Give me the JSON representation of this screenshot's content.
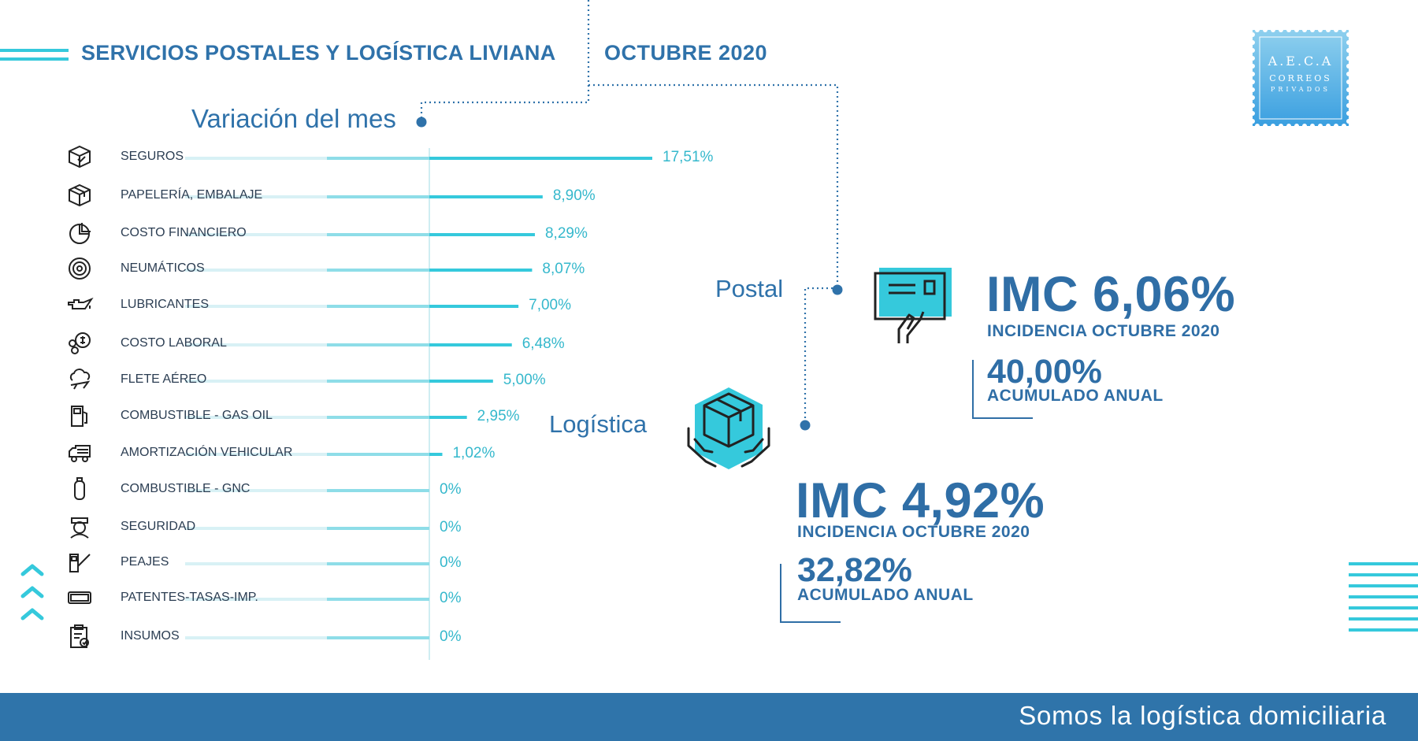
{
  "header": {
    "title": "SERVICIOS POSTALES Y LOGÍSTICA LIVIANA",
    "month": "OCTUBRE 2020"
  },
  "logo": {
    "line1": "A.E.C.A",
    "line2": "CORREOS",
    "line3": "PRIVADOS"
  },
  "sections": {
    "postal": "Postal",
    "logistica": "Logística"
  },
  "postal": {
    "imc": "IMC 6,06%",
    "incidencia": "INCIDENCIA OCTUBRE 2020",
    "acumulado_value": "40,00%",
    "acumulado_label": "ACUMULADO ANUAL"
  },
  "logistica": {
    "imc": "IMC 4,92%",
    "incidencia": "INCIDENCIA OCTUBRE 2020",
    "acumulado_value": "32,82%",
    "acumulado_label": "ACUMULADO ANUAL"
  },
  "footer": {
    "slogan": "Somos la logística domiciliaria"
  },
  "colors": {
    "bar": "#35c9dc",
    "bar_faint": "#d8f1f5",
    "primary": "#2f72aa",
    "footer": "#2f74aa"
  },
  "chart_data": {
    "type": "bar",
    "orientation": "horizontal",
    "title": "Variación del mes",
    "categories": [
      "SEGUROS",
      "PAPELERÍA, EMBALAJE",
      "COSTO FINANCIERO",
      "NEUMÁTICOS",
      "LUBRICANTES",
      "COSTO LABORAL",
      "FLETE AÉREO",
      "COMBUSTIBLE - GAS OIL",
      "AMORTIZACIÓN VEHICULAR",
      "COMBUSTIBLE - GNC",
      "SEGURIDAD",
      "PEAJES",
      "PATENTES-TASAS-IMP.",
      "INSUMOS"
    ],
    "values": [
      17.51,
      8.9,
      8.29,
      8.07,
      7.0,
      6.48,
      5.0,
      2.95,
      1.02,
      0,
      0,
      0,
      0,
      0
    ],
    "value_labels": [
      "17,51%",
      "8,90%",
      "8,29%",
      "8,07%",
      "7,00%",
      "6,48%",
      "5,00%",
      "2,95%",
      "1,02%",
      "0%",
      "0%",
      "0%",
      "0%",
      "0%"
    ],
    "icons": [
      "shield-box-icon",
      "package-icon",
      "pie-chart-icon",
      "tire-icon",
      "oil-can-icon",
      "coins-icon",
      "cloud-plane-icon",
      "fuel-pump-icon",
      "truck-icon",
      "gas-cylinder-icon",
      "security-guard-icon",
      "toll-barrier-icon",
      "license-plate-icon",
      "clipboard-icon"
    ],
    "xlim": [
      0,
      17.51
    ]
  }
}
